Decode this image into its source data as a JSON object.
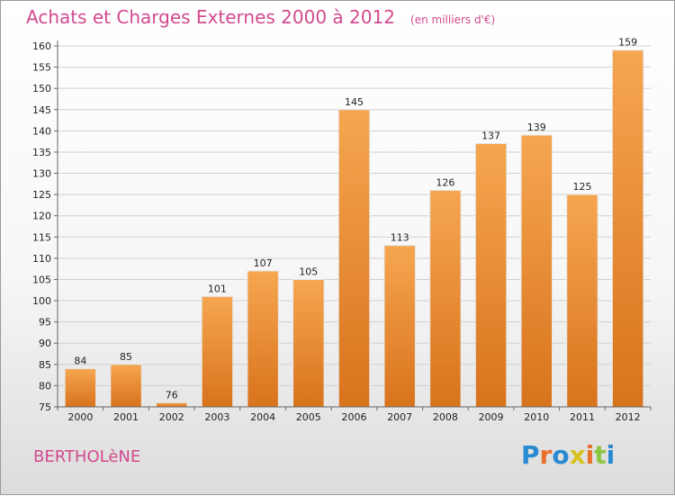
{
  "header": {
    "title": "Achats et Charges Externes 2000 à 2012",
    "unit": "(en milliers d'€)"
  },
  "footer": {
    "place": "BERTHOLèNE",
    "brand": "Proxiti",
    "brand_colors": [
      "#2a8ad1",
      "#e8702a",
      "#2a8ad1",
      "#d8c21e",
      "#e8702a",
      "#8cc63f",
      "#2a8ad1"
    ]
  },
  "chart_data": {
    "type": "bar",
    "categories": [
      "2000",
      "2001",
      "2002",
      "2003",
      "2004",
      "2005",
      "2006",
      "2007",
      "2008",
      "2009",
      "2010",
      "2011",
      "2012"
    ],
    "values": [
      84,
      85,
      76,
      101,
      107,
      105,
      145,
      113,
      126,
      137,
      139,
      125,
      159
    ],
    "ylim": [
      75,
      160
    ],
    "yticks": [
      75,
      80,
      85,
      90,
      95,
      100,
      105,
      110,
      115,
      120,
      125,
      130,
      135,
      140,
      145,
      150,
      155,
      160
    ],
    "grid": true,
    "bar_color": "#f09a40"
  }
}
